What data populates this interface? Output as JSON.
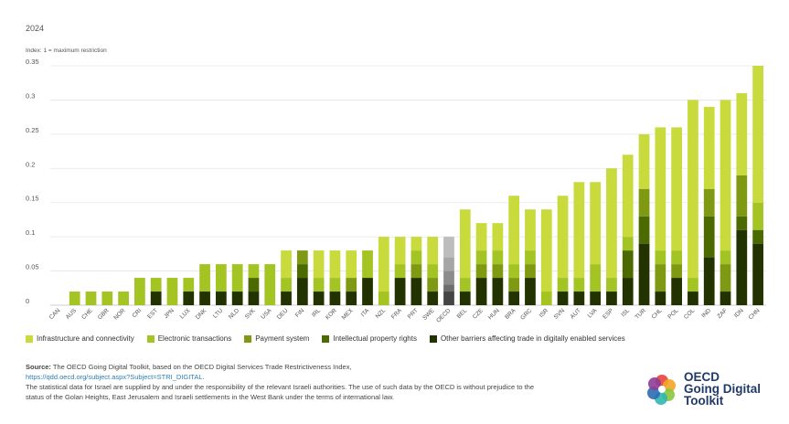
{
  "header": {
    "year": "2024",
    "index_note": "Index: 1 = maximum restriction"
  },
  "chart_data": {
    "type": "bar",
    "stacked": true,
    "ylim": [
      0,
      0.35
    ],
    "yticks": [
      "0",
      "0.05",
      "0.1",
      "0.15",
      "0.2",
      "0.25",
      "0.3",
      "0.35"
    ],
    "categories": [
      "CAN",
      "AUS",
      "CHE",
      "GBR",
      "NOR",
      "CRI",
      "EST",
      "JPN",
      "LUX",
      "DNK",
      "LTU",
      "NLD",
      "SVK",
      "USA",
      "DEU",
      "FIN",
      "IRL",
      "KOR",
      "MEX",
      "ITA",
      "NZL",
      "FRA",
      "PRT",
      "SWE",
      "OECD",
      "BEL",
      "CZE",
      "HUN",
      "BRA",
      "GRC",
      "ISR",
      "SVN",
      "AUT",
      "LVA",
      "ESP",
      "ISL",
      "TUR",
      "CHL",
      "POL",
      "COL",
      "IND",
      "ZAF",
      "IDN",
      "CHN"
    ],
    "highlight": "OECD",
    "series": [
      {
        "name": "Other barriers affecting trade in digitally enabled services",
        "color": "#233300",
        "highlight_color": "#444444",
        "values": [
          0,
          0,
          0,
          0,
          0,
          0,
          0.02,
          0,
          0.02,
          0.02,
          0.02,
          0.02,
          0.02,
          0,
          0.02,
          0.04,
          0.02,
          0.02,
          0.02,
          0.04,
          0,
          0.04,
          0.04,
          0.02,
          0.02,
          0.02,
          0.04,
          0.04,
          0.02,
          0.04,
          0,
          0.02,
          0.02,
          0.02,
          0.02,
          0.04,
          0.09,
          0.02,
          0.04,
          0.02,
          0.07,
          0.02,
          0.11,
          0.09
        ]
      },
      {
        "name": "Intellectual property rights",
        "color": "#4b6b00",
        "highlight_color": "#6e6e6e",
        "values": [
          0,
          0,
          0,
          0,
          0,
          0,
          0,
          0,
          0,
          0,
          0,
          0,
          0.02,
          0,
          0,
          0.02,
          0,
          0,
          0,
          0,
          0,
          0,
          0,
          0,
          0.01,
          0,
          0,
          0,
          0,
          0,
          0,
          0,
          0,
          0,
          0,
          0.04,
          0.04,
          0,
          0,
          0,
          0.06,
          0,
          0.02,
          0.02
        ]
      },
      {
        "name": "Payment system",
        "color": "#7f9a12",
        "highlight_color": "#8c8c8c",
        "values": [
          0,
          0,
          0,
          0,
          0,
          0,
          0,
          0,
          0,
          0,
          0,
          0,
          0,
          0,
          0,
          0.02,
          0,
          0,
          0.02,
          0,
          0,
          0,
          0.02,
          0.02,
          0.02,
          0,
          0.02,
          0.02,
          0.02,
          0.02,
          0,
          0,
          0,
          0,
          0,
          0,
          0.04,
          0.04,
          0.02,
          0,
          0.04,
          0.04,
          0.06,
          0
        ]
      },
      {
        "name": "Electronic transactions",
        "color": "#a4c424",
        "highlight_color": "#a6a6a6",
        "values": [
          0,
          0.02,
          0.02,
          0.02,
          0.02,
          0.04,
          0.02,
          0.04,
          0.02,
          0.04,
          0.04,
          0.04,
          0.02,
          0.06,
          0.02,
          0,
          0.02,
          0.02,
          0,
          0.04,
          0.02,
          0.02,
          0.02,
          0.02,
          0.02,
          0.02,
          0.02,
          0.02,
          0.02,
          0.02,
          0.02,
          0.02,
          0.02,
          0.04,
          0.02,
          0.02,
          0,
          0.02,
          0.02,
          0.02,
          0,
          0.02,
          0,
          0.04
        ]
      },
      {
        "name": "Infrastructure and connectivity",
        "color": "#c8da3c",
        "highlight_color": "#bdbdbd",
        "values": [
          0,
          0,
          0,
          0,
          0,
          0,
          0,
          0,
          0,
          0,
          0,
          0,
          0,
          0,
          0.04,
          0,
          0.04,
          0.04,
          0.04,
          0,
          0.08,
          0.04,
          0.02,
          0.04,
          0.03,
          0.1,
          0.04,
          0.04,
          0.1,
          0.06,
          0.12,
          0.12,
          0.14,
          0.12,
          0.16,
          0.12,
          0.08,
          0.18,
          0.18,
          0.26,
          0.12,
          0.22,
          0.12,
          0.2
        ]
      }
    ],
    "legend_order": [
      "Infrastructure and connectivity",
      "Electronic transactions",
      "Payment system",
      "Intellectual property rights",
      "Other barriers affecting trade in digitally enabled services"
    ],
    "legend_position": "bottom"
  },
  "legend": {
    "items": [
      {
        "label": "Infrastructure and connectivity",
        "color": "#c8da3c"
      },
      {
        "label": "Electronic transactions",
        "color": "#a4c424"
      },
      {
        "label": "Payment system",
        "color": "#7f9a12"
      },
      {
        "label": "Intellectual property rights",
        "color": "#4b6b00"
      },
      {
        "label": "Other barriers affecting trade in digitally enabled services",
        "color": "#233300"
      }
    ]
  },
  "source": {
    "label": "Source:",
    "text": " The OECD Going Digital Toolkit, based on the OECD Digital Services Trade Restrictiveness Index,",
    "link": "https://qdd.oecd.org/subject.aspx?Subject=STRI_DIGITAL.",
    "note": "The statistical data for Israel are supplied by and under the responsibility of the relevant Israeli authorities. The use of such data by the OECD is without prejudice to the status of the Golan Heights, East Jerusalem and Israeli settlements in the West Bank under the terms of international law."
  },
  "logo": {
    "line1": "OECD",
    "line2": "Going Digital",
    "line3": "Toolkit",
    "icon": "oecd-flower-icon"
  }
}
